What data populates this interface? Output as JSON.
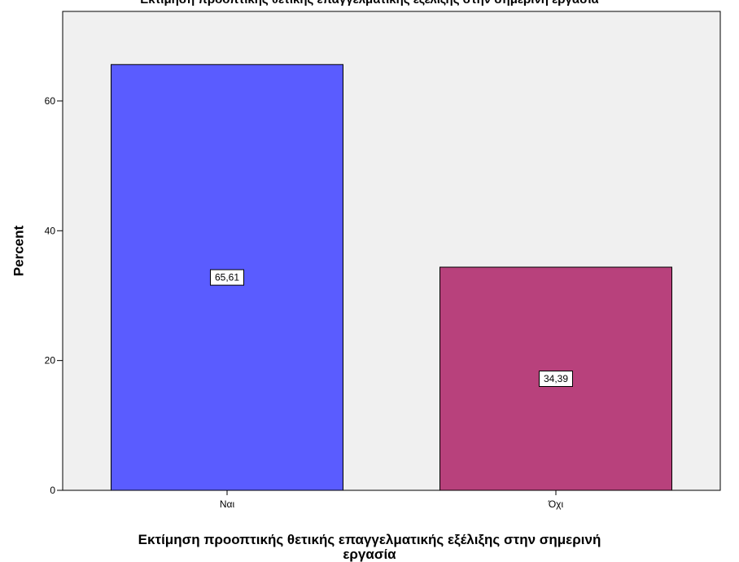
{
  "chart_data": {
    "type": "bar",
    "title": "Εκτίμηση προοπτικής θετικής επαγγελματικής εξέλιξης στην σημερινή εργασία",
    "xlabel_lines": [
      "Εκτίμηση προοπτικής θετικής επαγγελματικής εξέλιξης στην σημερινή",
      "εργασία"
    ],
    "ylabel": "Percent",
    "categories": [
      "Ναι",
      "Όχι"
    ],
    "values": [
      65.61,
      34.39
    ],
    "data_labels": [
      "65,61",
      "34,39"
    ],
    "colors": [
      "#5a5cff",
      "#b8417c"
    ],
    "ylim": [
      0,
      73.8
    ],
    "yticks": [
      0,
      20,
      40,
      60
    ],
    "plot_background": "#f0f0f0",
    "grid": false,
    "legend": "none"
  }
}
